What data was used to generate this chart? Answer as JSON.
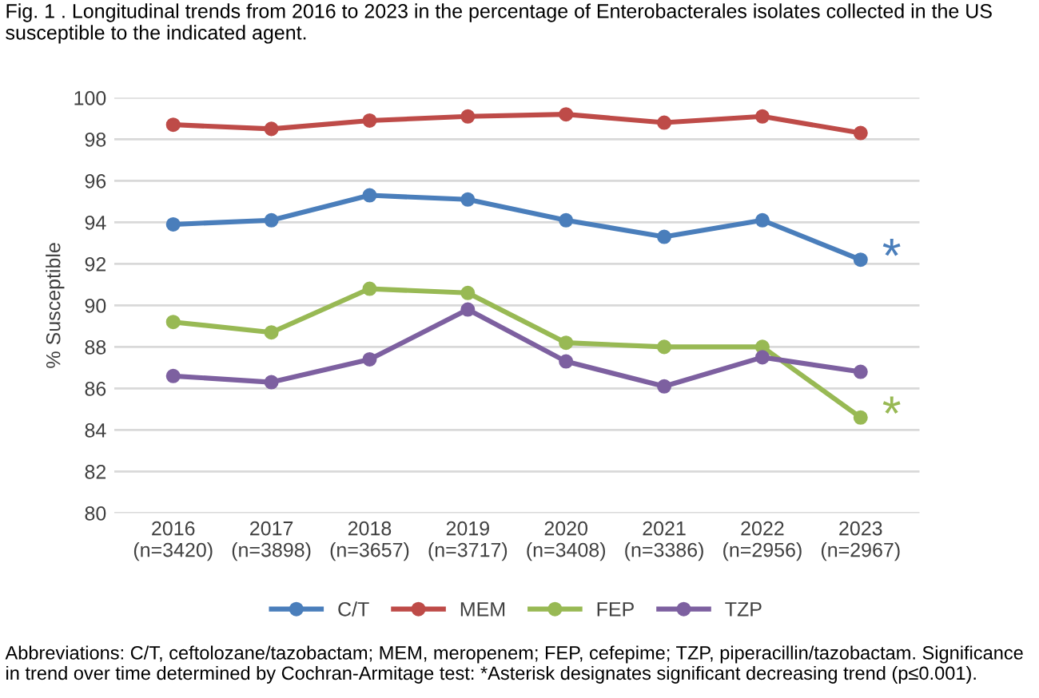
{
  "chart_data": {
    "type": "line",
    "title": "Fig. 1 . Longitudinal trends from 2016 to 2023 in the percentage of Enterobacterales isolates collected in the US susceptible to the indicated agent.",
    "ylabel": "% Susceptible",
    "categories": [
      "2016\n(n=3420)",
      "2017\n(n=3898)",
      "2018\n(n=3657)",
      "2019\n(n=3717)",
      "2020\n(n=3408)",
      "2021\n(n=3386)",
      "2022\n(n=2956)",
      "2023\n(n=2967)"
    ],
    "series": [
      {
        "name": "C/T",
        "color": "#4a7ebb",
        "values": [
          93.9,
          94.1,
          95.3,
          95.1,
          94.1,
          93.3,
          94.1,
          92.2
        ]
      },
      {
        "name": "MEM",
        "color": "#be4b48",
        "values": [
          98.7,
          98.5,
          98.9,
          99.1,
          99.2,
          98.8,
          99.1,
          98.3
        ]
      },
      {
        "name": "FEP",
        "color": "#98b954",
        "values": [
          89.2,
          88.7,
          90.8,
          90.6,
          88.2,
          88.0,
          88.0,
          84.6
        ]
      },
      {
        "name": "TZP",
        "color": "#7d60a0",
        "values": [
          86.6,
          86.3,
          87.4,
          89.8,
          87.3,
          86.1,
          87.5,
          86.8
        ]
      }
    ],
    "ylim": [
      80,
      100
    ],
    "yticks": [
      80,
      82,
      84,
      86,
      88,
      90,
      92,
      94,
      96,
      98,
      100
    ],
    "grid": "y",
    "legend": "bottom",
    "marker": "circle",
    "line_style": "solid",
    "annotations": [
      {
        "text": "*",
        "x": "2023\n(n=2967)",
        "y": 92.2
      },
      {
        "text": "*",
        "x": "2023\n(n=2967)",
        "y": 84.6
      },
      "Abbreviations: C/T, ceftolozane/tazobactam; MEM, meropenem; FEP, cefepime; TZP, piperacillin/tazobactam. Significance in trend over time determined by Cochran-Armitage test: *Asterisk designates significant decreasing trend (p≤0.001)."
    ]
  }
}
